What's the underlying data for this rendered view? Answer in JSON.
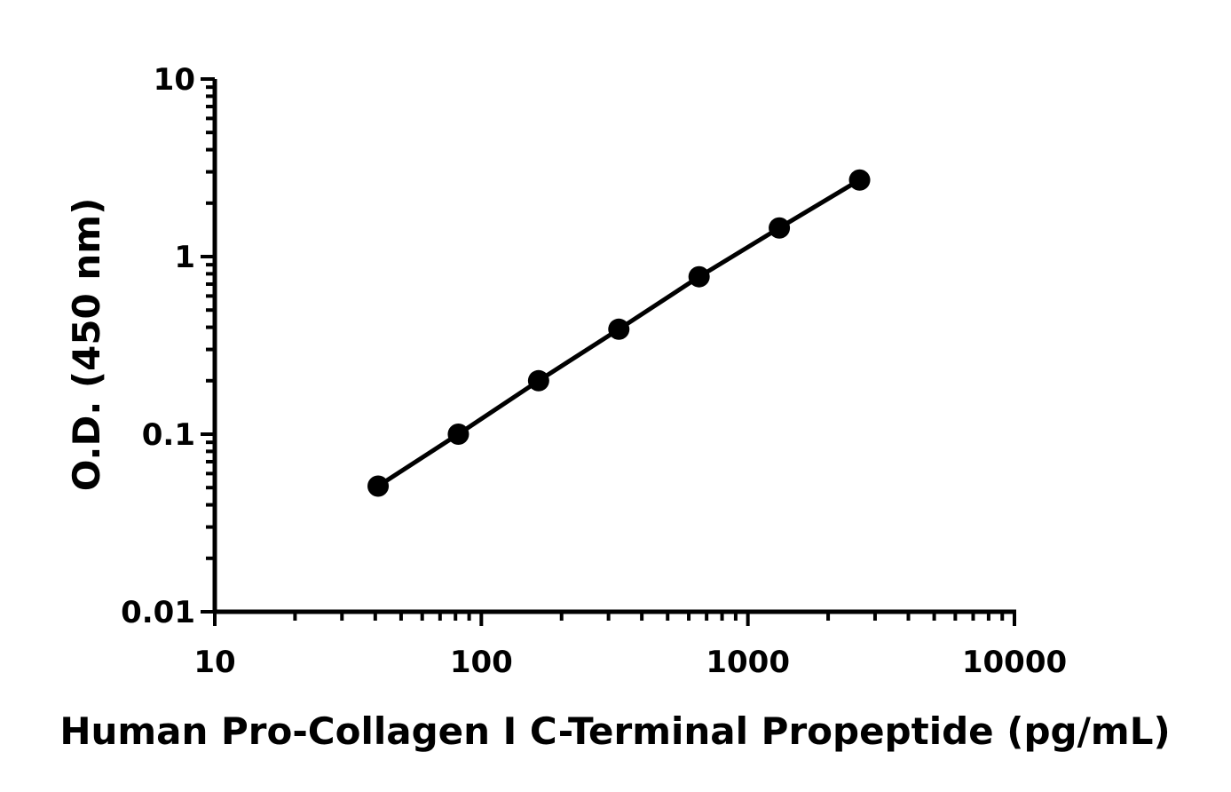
{
  "chart_data": {
    "type": "line",
    "title": "",
    "xlabel": "Human Pro-Collagen I C-Terminal Propeptide (pg/mL)",
    "ylabel": "O.D. (450 nm)",
    "xscale": "log",
    "yscale": "log",
    "xlim": [
      10,
      10000
    ],
    "ylim": [
      0.01,
      10
    ],
    "xticks": [
      "10",
      "100",
      "1000",
      "10000"
    ],
    "yticks": [
      "0.01",
      "0.1",
      "1",
      "10"
    ],
    "grid": false,
    "legend": "none",
    "series": [
      {
        "x": [
          41,
          82,
          164,
          328,
          656,
          1312,
          2625
        ],
        "y": [
          0.051,
          0.1,
          0.2,
          0.39,
          0.77,
          1.45,
          2.7
        ]
      }
    ],
    "colors": {
      "line": "#000000",
      "marker": "#000000",
      "axis": "#000000"
    }
  }
}
